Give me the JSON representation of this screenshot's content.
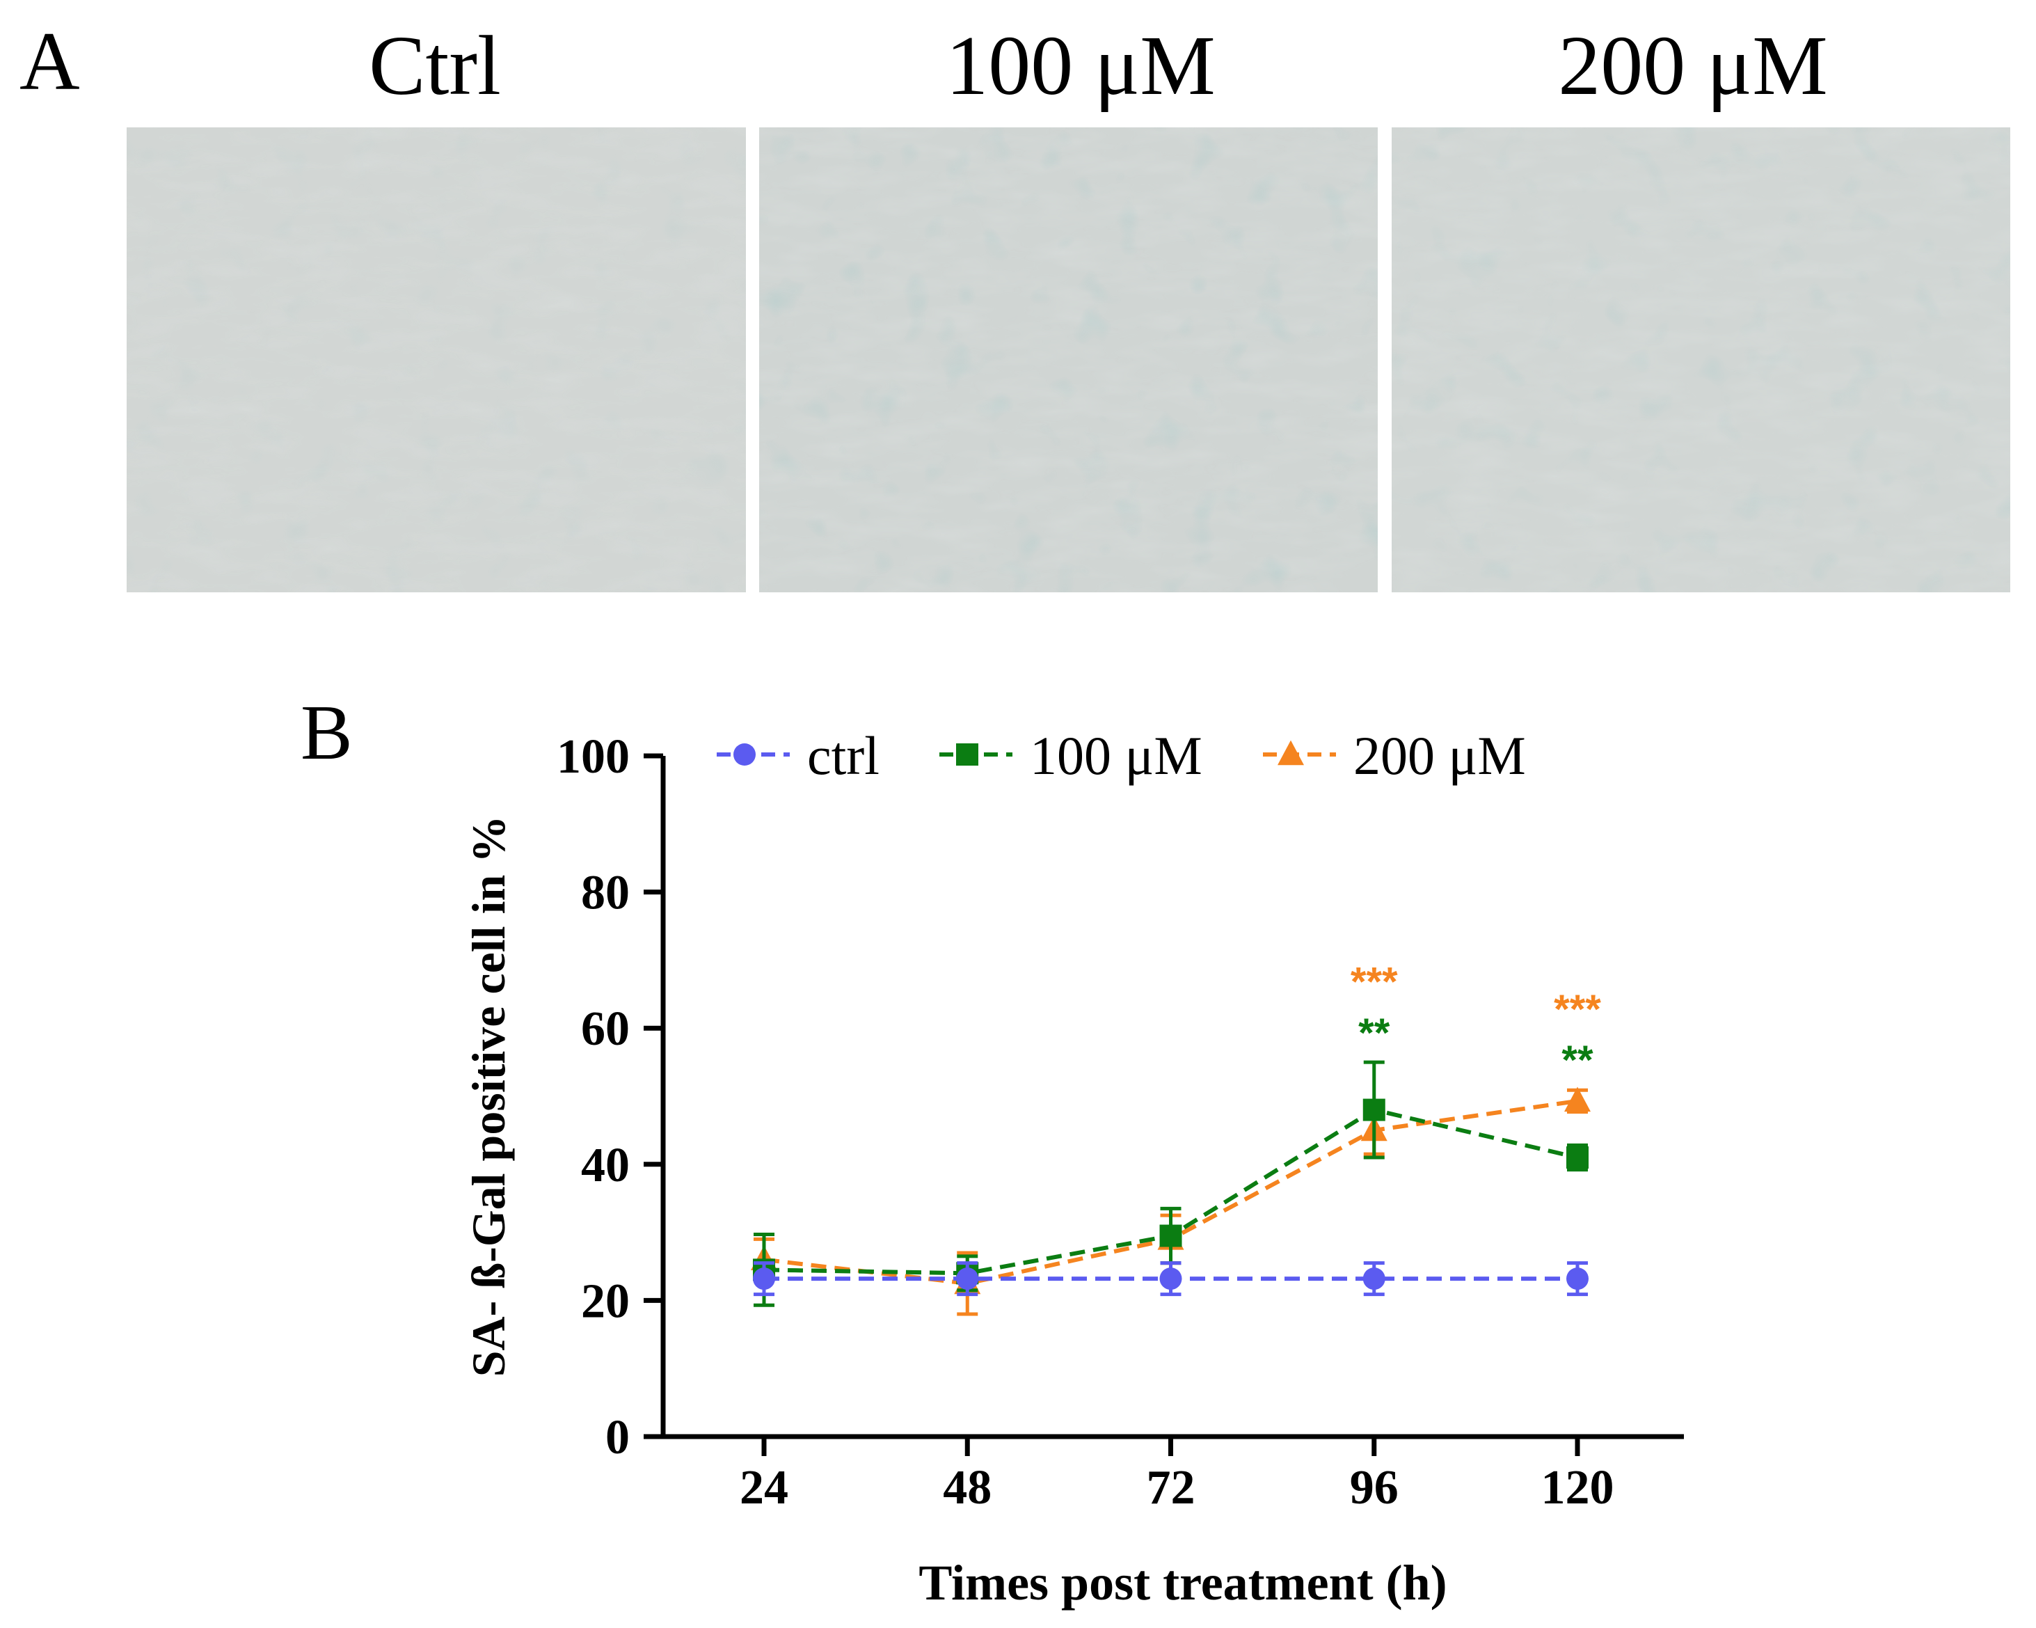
{
  "panel_a": {
    "label": "A",
    "titles": [
      "Ctrl",
      "100 μM",
      "200 μM"
    ],
    "description": "Microscopy images of SA-β-Gal stained cells"
  },
  "panel_b": {
    "label": "B"
  },
  "colors": {
    "ctrl": "#5b5bf0",
    "uM100": "#0b7d12",
    "uM200": "#f5841f",
    "axis": "#000000"
  },
  "chart_data": {
    "type": "line",
    "title": "",
    "xlabel": "Times post treatment (h)",
    "ylabel": "SA- ß-Gal positive cell in %",
    "x": [
      24,
      48,
      72,
      96,
      120
    ],
    "x_tick_labels": [
      "24",
      "48",
      "72",
      "96",
      "120"
    ],
    "ylim": [
      0,
      100
    ],
    "y_ticks": [
      0,
      20,
      40,
      60,
      80,
      100
    ],
    "y_tick_labels": [
      "0",
      "20",
      "40",
      "60",
      "80",
      "100"
    ],
    "grid": false,
    "legend_position": "top",
    "series": [
      {
        "key": "ctrl",
        "name": "ctrl",
        "marker": "circle",
        "values": [
          23.2,
          23.2,
          23.2,
          23.2,
          23.2
        ],
        "errors": [
          2.3,
          2.3,
          2.3,
          2.3,
          2.3
        ]
      },
      {
        "key": "uM100",
        "name": "100 μM",
        "marker": "square",
        "values": [
          24.5,
          24.0,
          29.5,
          48.0,
          41.0
        ],
        "errors": [
          5.2,
          2.5,
          4.0,
          7.0,
          1.8
        ]
      },
      {
        "key": "uM200",
        "name": "200 μM",
        "marker": "triangle",
        "values": [
          26.0,
          22.5,
          29.0,
          45.0,
          49.3
        ],
        "errors": [
          3.0,
          4.5,
          3.5,
          3.5,
          1.6
        ]
      }
    ],
    "annotations": [
      {
        "text": "***",
        "x": 96,
        "series": "uM200",
        "y": 67
      },
      {
        "text": "**",
        "x": 96,
        "series": "uM100",
        "y": 59.5
      },
      {
        "text": "***",
        "x": 120,
        "series": "uM200",
        "y": 63
      },
      {
        "text": "**",
        "x": 120,
        "series": "uM100",
        "y": 55.5
      }
    ]
  }
}
